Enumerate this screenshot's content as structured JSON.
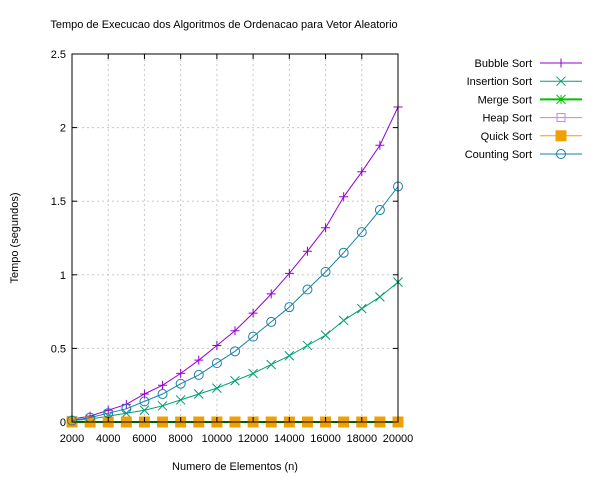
{
  "chart_data": {
    "type": "line",
    "title": "Tempo de Execucao dos Algoritmos de Ordenacao para Vetor Aleatorio",
    "xlabel": "Numero de Elementos (n)",
    "ylabel": "Tempo (segundos)",
    "xlim": [
      2000,
      20000
    ],
    "ylim": [
      0,
      2.5
    ],
    "xticks": [
      "2000",
      "4000",
      "6000",
      "8000",
      "10000",
      "12000",
      "14000",
      "16000",
      "18000",
      "20000"
    ],
    "yticks": [
      "0",
      "0.5",
      "1",
      "1.5",
      "2",
      "2.5"
    ],
    "xtick_values": [
      2000,
      4000,
      6000,
      8000,
      10000,
      12000,
      14000,
      16000,
      18000,
      20000
    ],
    "ytick_values": [
      0,
      0.5,
      1,
      1.5,
      2,
      2.5
    ],
    "grid": true,
    "legend_position": "top-right outside",
    "x": [
      2000,
      3000,
      4000,
      5000,
      6000,
      7000,
      8000,
      9000,
      10000,
      11000,
      12000,
      13000,
      14000,
      15000,
      16000,
      17000,
      18000,
      19000,
      20000
    ],
    "series": [
      {
        "name": "Bubble Sort",
        "color": "#9400d3",
        "marker": "plus",
        "values": [
          0.02,
          0.04,
          0.08,
          0.12,
          0.19,
          0.25,
          0.33,
          0.42,
          0.52,
          0.62,
          0.74,
          0.87,
          1.01,
          1.16,
          1.32,
          1.53,
          1.7,
          1.88,
          2.14
        ]
      },
      {
        "name": "Insertion Sort",
        "color": "#009e73",
        "marker": "cross",
        "values": [
          0.01,
          0.02,
          0.04,
          0.06,
          0.08,
          0.11,
          0.15,
          0.19,
          0.23,
          0.28,
          0.33,
          0.39,
          0.45,
          0.52,
          0.59,
          0.69,
          0.77,
          0.85,
          0.95
        ]
      },
      {
        "name": "Merge Sort",
        "color": "#00c000",
        "marker": "star",
        "values": [
          0,
          0,
          0,
          0,
          0,
          0,
          0,
          0,
          0,
          0,
          0,
          0,
          0,
          0,
          0,
          0,
          0,
          0,
          0
        ]
      },
      {
        "name": "Heap Sort",
        "color": "#c080ff",
        "marker": "square-open",
        "values": [
          0,
          0,
          0,
          0,
          0,
          0,
          0,
          0,
          0,
          0,
          0,
          0,
          0,
          0,
          0,
          0,
          0,
          0,
          0
        ]
      },
      {
        "name": "Quick Sort",
        "color": "#f0a000",
        "marker": "square-filled",
        "values": [
          0,
          0,
          0,
          0,
          0,
          0,
          0,
          0,
          0,
          0,
          0,
          0,
          0,
          0,
          0,
          0,
          0,
          0,
          0
        ]
      },
      {
        "name": "Counting Sort",
        "color": "#1a7fa8",
        "marker": "circle-open",
        "values": [
          0.01,
          0.03,
          0.06,
          0.09,
          0.14,
          0.19,
          0.26,
          0.32,
          0.4,
          0.48,
          0.58,
          0.68,
          0.78,
          0.9,
          1.02,
          1.15,
          1.29,
          1.44,
          1.6
        ]
      }
    ]
  }
}
